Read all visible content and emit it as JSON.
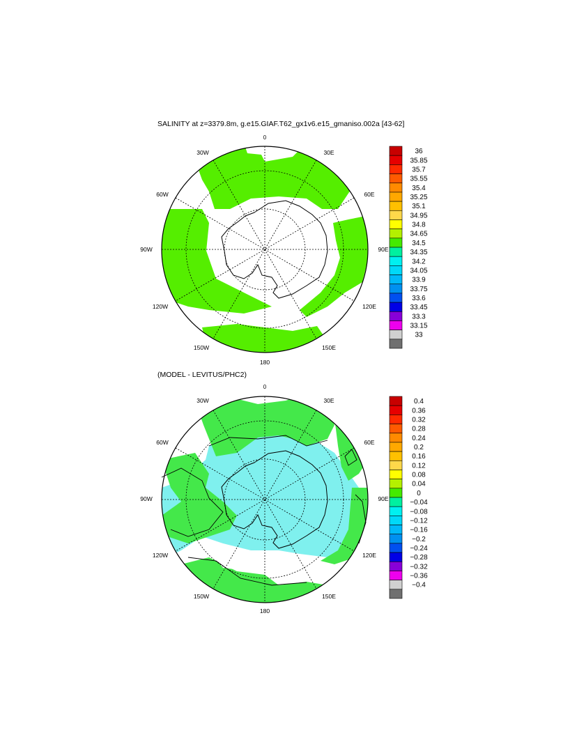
{
  "top_panel": {
    "title": "SALINITY at z=3379.8m, g.e15.GIAF.T62_gx1v6.e15_gmaniso.002a [43-62]",
    "lon_labels": {
      "n": "0",
      "ne": "30E",
      "ene": "60E",
      "e": "90E",
      "ese": "120E",
      "sse": "150E",
      "s": "180",
      "ssw": "150W",
      "wsw": "120W",
      "w": "90W",
      "wnw": "60W",
      "nnw": "30W"
    },
    "colorbar": {
      "labels": [
        "36",
        "35.85",
        "35.7",
        "35.55",
        "35.4",
        "35.25",
        "35.1",
        "34.95",
        "34.8",
        "34.65",
        "34.5",
        "34.35",
        "34.2",
        "34.05",
        "33.9",
        "33.75",
        "33.6",
        "33.45",
        "33.3",
        "33.15",
        "33"
      ],
      "colors": [
        "#c80000",
        "#e60000",
        "#ff2a00",
        "#ff5a00",
        "#ff8a00",
        "#ffa800",
        "#ffc000",
        "#ffd84a",
        "#ffff00",
        "#b4f000",
        "#44ea00",
        "#00f0a0",
        "#00f0f0",
        "#00d8f8",
        "#00b8f8",
        "#0090f0",
        "#0050f0",
        "#0000e6",
        "#8800d8",
        "#ee00ee",
        "#d0d0d0",
        "#707070"
      ]
    }
  },
  "bottom_panel": {
    "title": "(MODEL - LEVITUS/PHC2)",
    "lon_labels": {
      "n": "0",
      "ne": "30E",
      "ene": "60E",
      "e": "90E",
      "ese": "120E",
      "sse": "150E",
      "s": "180",
      "ssw": "150W",
      "wsw": "120W",
      "w": "90W",
      "wnw": "60W",
      "nnw": "30W"
    },
    "colorbar": {
      "labels": [
        "0.4",
        "0.36",
        "0.32",
        "0.28",
        "0.24",
        "0.2",
        "0.16",
        "0.12",
        "0.08",
        "0.04",
        "0",
        "−0.04",
        "−0.08",
        "−0.12",
        "−0.16",
        "−0.2",
        "−0.24",
        "−0.28",
        "−0.32",
        "−0.36",
        "−0.4"
      ],
      "colors": [
        "#c80000",
        "#e60000",
        "#ff2a00",
        "#ff5a00",
        "#ff8a00",
        "#ffa800",
        "#ffc000",
        "#ffd84a",
        "#ffff00",
        "#b4f000",
        "#44ea00",
        "#00f0a0",
        "#00f0f0",
        "#00d8f8",
        "#00b8f8",
        "#0090f0",
        "#0050f0",
        "#0000e6",
        "#8800d8",
        "#ee00ee",
        "#d0d0d0",
        "#707070"
      ]
    }
  },
  "map_colors": {
    "green": "#55ee00",
    "green2": "#44e84a",
    "cyan": "#7ff0ee",
    "white": "#ffffff"
  }
}
